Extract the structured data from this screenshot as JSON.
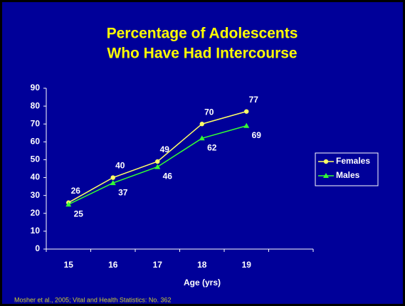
{
  "chart_data": {
    "type": "line",
    "title": "Percentage of Adolescents",
    "subtitle": "Who Have Had Intercourse",
    "x_label": "Age (yrs)",
    "source": "Mosher et al., 2005; Vital and Health Statistics: No. 362",
    "categories": [
      "15",
      "16",
      "17",
      "18",
      "19",
      null
    ],
    "series": [
      {
        "name": "Females",
        "color": "#ffff66",
        "marker": "circle",
        "values": [
          26,
          40,
          49,
          70,
          77,
          null
        ]
      },
      {
        "name": "Males",
        "color": "#33ff33",
        "marker": "triangle",
        "values": [
          25,
          37,
          46,
          62,
          69,
          null
        ]
      }
    ],
    "ylim": [
      0,
      90
    ],
    "yticks": [
      0,
      10,
      20,
      30,
      40,
      50,
      60,
      70,
      80,
      90
    ],
    "legend": "right",
    "grid": false
  }
}
